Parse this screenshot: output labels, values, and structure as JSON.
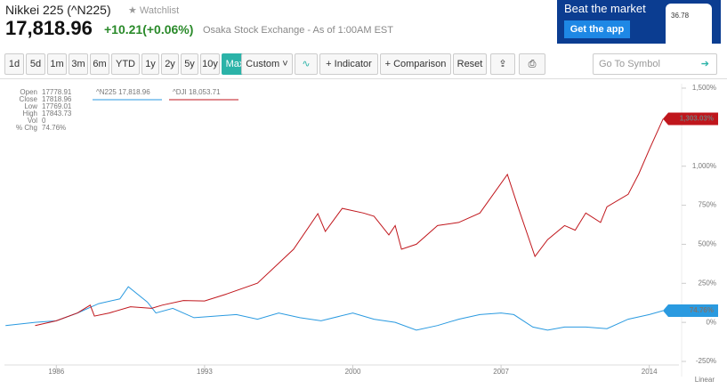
{
  "header": {
    "title": "Nikkei 225 (^N225)",
    "watchlist": "Watchlist",
    "price": "17,818.96",
    "change": "+10.21(+0.06%)",
    "exchange": "Osaka Stock Exchange - As of 1:00AM EST"
  },
  "ad": {
    "headline": "Beat the market",
    "button": "Get the app",
    "phone_value": "36.78"
  },
  "toolbar": {
    "ranges": [
      "1d",
      "5d",
      "1m",
      "3m",
      "6m",
      "YTD",
      "1y",
      "2y",
      "5y",
      "10y",
      "Max"
    ],
    "active": "Max",
    "custom": "Custom",
    "indicator": "Indicator",
    "comparison": "Comparison",
    "reset": "Reset",
    "symbol_placeholder": "Go To Symbol"
  },
  "info": {
    "labels": [
      "Open",
      "Close",
      "Low",
      "High",
      "Vol",
      "% Chg"
    ],
    "values": [
      "17778.91",
      "17818.96",
      "17769.01",
      "17843.73",
      "0",
      "74.76%"
    ]
  },
  "chart_data": {
    "type": "line",
    "scale_label": "Linear",
    "xlim": [
      1983.55,
      2015.4
    ],
    "xticks": [
      1986,
      1993,
      2000,
      2007,
      2014
    ],
    "ylim": [
      -250,
      1500
    ],
    "yticks": [
      {
        "value": -250,
        "label": "-250%"
      },
      {
        "value": 0,
        "label": "0%"
      },
      {
        "value": 250,
        "label": "250%"
      },
      {
        "value": 500,
        "label": "500%"
      },
      {
        "value": 750,
        "label": "750%"
      },
      {
        "value": 1000,
        "label": "1,000%"
      },
      {
        "value": 1500,
        "label": "1,500%"
      }
    ],
    "grid": false,
    "series": [
      {
        "name": "^N225 17,818.96",
        "color": "#2a9ae0",
        "end_label": "74.76%",
        "x": [
          1983.6,
          1985,
          1986,
          1987,
          1988,
          1989,
          1989.4,
          1990.3,
          1990.7,
          1991.5,
          1992.5,
          1993.5,
          1994.5,
          1995.5,
          1996.5,
          1997.5,
          1998.5,
          2000,
          2001,
          2002,
          2003,
          2004,
          2005,
          2006,
          2007,
          2007.6,
          2008.5,
          2009.2,
          2010,
          2011,
          2012,
          2013,
          2014,
          2014.65
        ],
        "values": [
          -20,
          0,
          10,
          60,
          120,
          150,
          228,
          130,
          60,
          90,
          30,
          40,
          50,
          20,
          60,
          30,
          10,
          60,
          20,
          0,
          -50,
          -20,
          20,
          50,
          60,
          50,
          -30,
          -50,
          -30,
          -30,
          -40,
          20,
          50,
          74.76
        ]
      },
      {
        "name": "^DJI 18,053.71",
        "color": "#c0161c",
        "end_label": "1,303.03%",
        "x": [
          1985,
          1986,
          1987,
          1987.6,
          1987.8,
          1988.5,
          1989.5,
          1990.5,
          1991,
          1992,
          1993,
          1994,
          1995.5,
          1997.2,
          1998.35,
          1998.7,
          1999.5,
          2000.5,
          2001,
          2001.7,
          2002,
          2002.3,
          2003,
          2004,
          2005,
          2006,
          2007.3,
          2007.8,
          2008.6,
          2009.2,
          2010,
          2010.5,
          2011,
          2011.7,
          2012,
          2013,
          2013.5,
          2014,
          2014.65
        ],
        "values": [
          -20,
          10,
          60,
          110,
          40,
          60,
          100,
          90,
          110,
          140,
          137,
          180,
          251,
          468,
          696,
          582,
          730,
          700,
          680,
          560,
          620,
          468,
          500,
          620,
          640,
          700,
          947,
          740,
          422,
          530,
          620,
          590,
          700,
          640,
          740,
          820,
          950,
          1107,
          1303.03
        ]
      }
    ]
  }
}
